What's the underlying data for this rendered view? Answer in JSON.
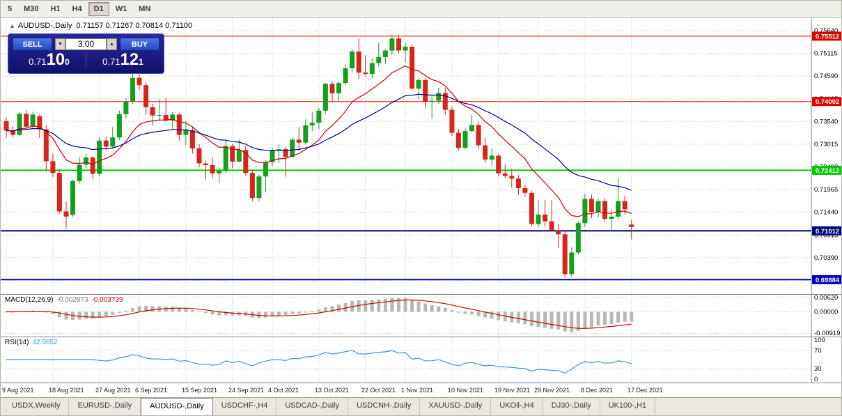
{
  "toolbar": {
    "timeframes": [
      "5",
      "M30",
      "H1",
      "H4",
      "D1",
      "W1",
      "MN"
    ],
    "active": "D1"
  },
  "chart_title": {
    "symbol": "AUDUSD-,Daily",
    "ohlc": "0.71157 0.71267 0.70814 0.71100"
  },
  "trade_panel": {
    "sell_label": "SELL",
    "buy_label": "BUY",
    "volume": "3.00",
    "bid": {
      "base": "0.71",
      "pips": "10",
      "pip_fraction": "0"
    },
    "ask": {
      "base": "0.71",
      "pips": "12",
      "pip_fraction": "1"
    }
  },
  "chart_data": {
    "type": "candlestick",
    "title": "AUDUSD-,Daily",
    "y_range": [
      0.6955,
      0.7593
    ],
    "y_ticks": [
      "0.75640",
      "0.75115",
      "0.74590",
      "0.74065",
      "0.73540",
      "0.73015",
      "0.72490",
      "0.71965",
      "0.71440",
      "0.70915",
      "0.70390",
      "0.69865"
    ],
    "x_labels": [
      {
        "label": "9 Aug 2021",
        "i": 0
      },
      {
        "label": "18 Aug 2021",
        "i": 7
      },
      {
        "label": "27 Aug 2021",
        "i": 14
      },
      {
        "label": "6 Sep 2021",
        "i": 20
      },
      {
        "label": "15 Sep 2021",
        "i": 27
      },
      {
        "label": "24 Sep 2021",
        "i": 34
      },
      {
        "label": "4 Oct 2021",
        "i": 40
      },
      {
        "label": "13 Oct 2021",
        "i": 47
      },
      {
        "label": "22 Oct 2021",
        "i": 54
      },
      {
        "label": "1 Nov 2021",
        "i": 60
      },
      {
        "label": "10 Nov 2021",
        "i": 67
      },
      {
        "label": "19 Nov 2021",
        "i": 74
      },
      {
        "label": "29 Nov 2021",
        "i": 80
      },
      {
        "label": "8 Dec 2021",
        "i": 87
      },
      {
        "label": "17 Dec 2021",
        "i": 94
      }
    ],
    "ohlc": {
      "open": [
        0.7355,
        0.7333,
        0.7323,
        0.7372,
        0.7342,
        0.7366,
        0.7336,
        0.7262,
        0.7235,
        0.7146,
        0.7138,
        0.7216,
        0.7254,
        0.7271,
        0.7233,
        0.731,
        0.7296,
        0.7317,
        0.7371,
        0.7401,
        0.7455,
        0.7438,
        0.7387,
        0.7368,
        0.7369,
        0.7356,
        0.737,
        0.7323,
        0.7334,
        0.7292,
        0.7257,
        0.7253,
        0.7234,
        0.724,
        0.7297,
        0.7261,
        0.7288,
        0.7235,
        0.7177,
        0.7227,
        0.726,
        0.7288,
        0.729,
        0.7272,
        0.7312,
        0.7305,
        0.7345,
        0.7351,
        0.7379,
        0.7441,
        0.7419,
        0.7443,
        0.7477,
        0.7516,
        0.7467,
        0.7464,
        0.7489,
        0.7503,
        0.7518,
        0.7546,
        0.7518,
        0.7527,
        0.743,
        0.745,
        0.74,
        0.7402,
        0.742,
        0.7381,
        0.7328,
        0.7293,
        0.7332,
        0.7346,
        0.7299,
        0.7266,
        0.7275,
        0.7234,
        0.7228,
        0.7222,
        0.72,
        0.7189,
        0.7117,
        0.7139,
        0.7123,
        0.7103,
        0.7093,
        0.7001,
        0.7051,
        0.7119,
        0.7175,
        0.7145,
        0.717,
        0.7129,
        0.7134,
        0.717,
        0.71157
      ],
      "high": [
        0.7364,
        0.7344,
        0.7376,
        0.738,
        0.7377,
        0.7371,
        0.7345,
        0.728,
        0.7243,
        0.7169,
        0.722,
        0.7271,
        0.7281,
        0.7274,
        0.7317,
        0.732,
        0.7341,
        0.7379,
        0.7408,
        0.7478,
        0.7462,
        0.7445,
        0.7395,
        0.7406,
        0.7409,
        0.7376,
        0.7374,
        0.7355,
        0.7342,
        0.7302,
        0.7264,
        0.727,
        0.7246,
        0.7311,
        0.7302,
        0.7312,
        0.7297,
        0.7242,
        0.7232,
        0.7264,
        0.7294,
        0.7301,
        0.7296,
        0.7316,
        0.7341,
        0.7359,
        0.7375,
        0.7385,
        0.7443,
        0.7447,
        0.7447,
        0.7486,
        0.7522,
        0.7547,
        0.7507,
        0.75,
        0.7536,
        0.7521,
        0.7555,
        0.7555,
        0.7537,
        0.7532,
        0.7455,
        0.7454,
        0.7414,
        0.7432,
        0.7432,
        0.7388,
        0.7337,
        0.7338,
        0.7369,
        0.7353,
        0.7317,
        0.7292,
        0.7278,
        0.7255,
        0.7245,
        0.723,
        0.7208,
        0.7194,
        0.7172,
        0.7173,
        0.7172,
        0.7117,
        0.7102,
        0.7063,
        0.7124,
        0.7187,
        0.7185,
        0.7176,
        0.7177,
        0.7151,
        0.7224,
        0.7183,
        0.71267
      ],
      "low": [
        0.7316,
        0.7317,
        0.732,
        0.7337,
        0.734,
        0.7316,
        0.724,
        0.7226,
        0.7141,
        0.7106,
        0.7133,
        0.721,
        0.7246,
        0.7221,
        0.7227,
        0.7288,
        0.7292,
        0.7311,
        0.7361,
        0.7395,
        0.7427,
        0.7369,
        0.7345,
        0.7357,
        0.7354,
        0.7337,
        0.731,
        0.73,
        0.728,
        0.7248,
        0.722,
        0.7223,
        0.7211,
        0.7235,
        0.7246,
        0.726,
        0.7228,
        0.717,
        0.717,
        0.719,
        0.725,
        0.7258,
        0.7226,
        0.7269,
        0.7288,
        0.7301,
        0.7332,
        0.7336,
        0.7371,
        0.7398,
        0.7401,
        0.7437,
        0.7466,
        0.7452,
        0.7459,
        0.7454,
        0.748,
        0.7487,
        0.7508,
        0.7511,
        0.749,
        0.7425,
        0.7406,
        0.7384,
        0.736,
        0.7395,
        0.7369,
        0.732,
        0.7287,
        0.729,
        0.733,
        0.7291,
        0.7259,
        0.725,
        0.7227,
        0.7222,
        0.7201,
        0.7184,
        0.718,
        0.7111,
        0.7109,
        0.711,
        0.7099,
        0.7061,
        0.6993,
        0.6995,
        0.7046,
        0.711,
        0.713,
        0.7133,
        0.7122,
        0.71,
        0.7128,
        0.7139,
        0.70814
      ],
      "close": [
        0.7333,
        0.7323,
        0.7372,
        0.7342,
        0.737,
        0.7336,
        0.7262,
        0.7235,
        0.7146,
        0.7134,
        0.7216,
        0.7254,
        0.7271,
        0.7233,
        0.731,
        0.7296,
        0.7317,
        0.7371,
        0.7401,
        0.7455,
        0.7438,
        0.7387,
        0.7368,
        0.7369,
        0.7356,
        0.737,
        0.7323,
        0.7334,
        0.7292,
        0.7257,
        0.7253,
        0.7234,
        0.724,
        0.7297,
        0.7261,
        0.7288,
        0.7235,
        0.7177,
        0.7227,
        0.726,
        0.7288,
        0.729,
        0.7272,
        0.7312,
        0.7305,
        0.7345,
        0.7351,
        0.7379,
        0.7441,
        0.7419,
        0.7443,
        0.7477,
        0.7516,
        0.7467,
        0.7464,
        0.7489,
        0.7503,
        0.7518,
        0.7546,
        0.7518,
        0.7527,
        0.743,
        0.745,
        0.74,
        0.7402,
        0.742,
        0.7381,
        0.7328,
        0.7293,
        0.7332,
        0.7346,
        0.7299,
        0.7266,
        0.7275,
        0.7234,
        0.7228,
        0.7222,
        0.72,
        0.7189,
        0.7117,
        0.7139,
        0.7123,
        0.7103,
        0.7093,
        0.7001,
        0.7051,
        0.7119,
        0.7175,
        0.7145,
        0.717,
        0.7129,
        0.7134,
        0.717,
        0.7151,
        0.711
      ]
    },
    "colors": {
      "up": "#13a01e",
      "down": "#d8251b"
    },
    "hlines": [
      {
        "price": 0.75512,
        "label": "0.75512",
        "color": "#dd0000",
        "width": 1
      },
      {
        "price": 0.74002,
        "label": "0.74002",
        "color": "#dd0000",
        "width": 1
      },
      {
        "price": 0.72412,
        "label": "0.72412",
        "color": "#00c800",
        "width": 2
      },
      {
        "price": 0.71012,
        "label": "0.71012",
        "color": "#000080",
        "width": 2
      },
      {
        "price": 0.69884,
        "label": "0.69884",
        "color": "#0000b4",
        "width": 2
      }
    ],
    "moving_averages": [
      {
        "period": 12,
        "color": "#cc0000"
      },
      {
        "period": 30,
        "color": "#000080"
      }
    ],
    "macd": {
      "label": "MACD(12,26,9)",
      "main_value": "-0.002873",
      "signal_value": "-0.003739",
      "params": [
        12,
        26,
        9
      ],
      "y_ticks": [
        "0.00620",
        "0.00000",
        "-0.00919"
      ],
      "y_range": [
        -0.0105,
        0.0075
      ],
      "histogram_color": "#b8b8b8",
      "signal_color": "#cc0000"
    },
    "rsi": {
      "label": "RSI(14)",
      "value": "42.5652",
      "period": 14,
      "levels": [
        "100",
        "70",
        "30",
        "0"
      ],
      "dotted_levels": [
        70,
        30
      ],
      "y_range": [
        0,
        100
      ],
      "line_color": "#3e95d1"
    }
  },
  "tabs": {
    "items": [
      "USDX,Weekly",
      "EURUSD-,Daily",
      "AUDUSD-,Daily",
      "USDCHF-,H4",
      "USDCAD-,Daily",
      "USDCNH-,Daily",
      "XAUUSD-,Daily",
      "UKOil-,H4",
      "DJ30-,Daily",
      "UK100-,H1"
    ],
    "active_index": 2
  }
}
